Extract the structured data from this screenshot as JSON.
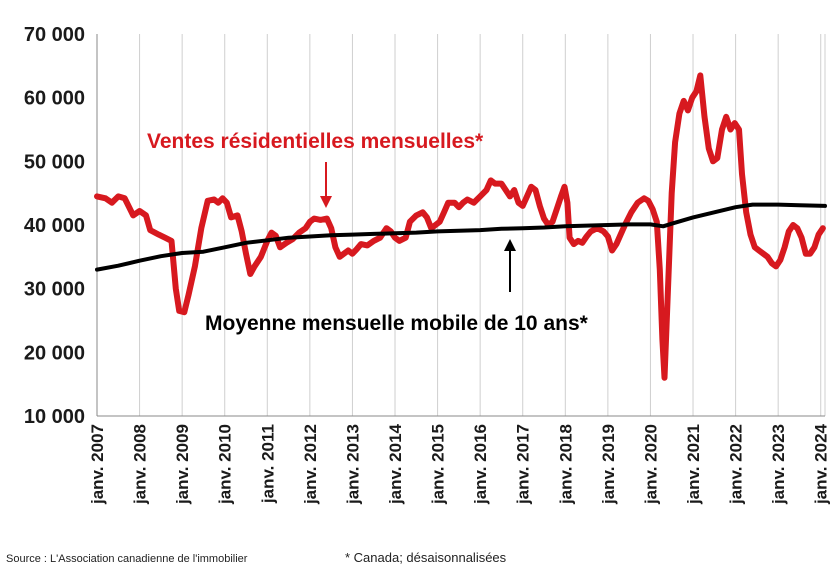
{
  "chart_data": {
    "type": "line",
    "ylim": [
      10000,
      70000
    ],
    "y_ticks": [
      "10 000",
      "20 000",
      "30 000",
      "40 000",
      "50 000",
      "60 000",
      "70 000"
    ],
    "y_tick_values": [
      10000,
      20000,
      30000,
      40000,
      50000,
      60000,
      70000
    ],
    "x_ticks": [
      "janv. 2007",
      "janv. 2008",
      "janv. 2009",
      "janv. 2010",
      "janv. 2011",
      "janv. 2012",
      "janv. 2013",
      "janv. 2014",
      "janv. 2015",
      "janv. 2016",
      "janv. 2017",
      "janv. 2018",
      "janv. 2019",
      "janv. 2020",
      "janv. 2021",
      "janv. 2022",
      "janv. 2023",
      "janv. 2024"
    ],
    "x_tick_values": [
      2007,
      2008,
      2009,
      2010,
      2011,
      2012,
      2013,
      2014,
      2015,
      2016,
      2017,
      2018,
      2019,
      2020,
      2021,
      2022,
      2023,
      2024
    ],
    "xlim": [
      2007,
      2024.1
    ],
    "grid": "vertical",
    "series": [
      {
        "name": "Ventes résidentielles mensuelles*",
        "color": "#d7191f",
        "points": [
          [
            2007.0,
            44500
          ],
          [
            2007.2,
            44200
          ],
          [
            2007.35,
            43500
          ],
          [
            2007.5,
            44500
          ],
          [
            2007.65,
            44200
          ],
          [
            2007.85,
            41500
          ],
          [
            2008.0,
            42200
          ],
          [
            2008.15,
            41500
          ],
          [
            2008.25,
            39200
          ],
          [
            2008.45,
            38500
          ],
          [
            2008.6,
            38000
          ],
          [
            2008.75,
            37500
          ],
          [
            2008.85,
            30000
          ],
          [
            2008.93,
            26500
          ],
          [
            2009.05,
            26300
          ],
          [
            2009.15,
            29000
          ],
          [
            2009.3,
            33500
          ],
          [
            2009.45,
            39500
          ],
          [
            2009.6,
            43800
          ],
          [
            2009.75,
            44000
          ],
          [
            2009.85,
            43500
          ],
          [
            2009.95,
            44200
          ],
          [
            2010.05,
            43500
          ],
          [
            2010.15,
            41200
          ],
          [
            2010.3,
            41500
          ],
          [
            2010.4,
            39000
          ],
          [
            2010.5,
            35500
          ],
          [
            2010.6,
            32300
          ],
          [
            2010.7,
            33500
          ],
          [
            2010.85,
            35000
          ],
          [
            2011.0,
            37500
          ],
          [
            2011.1,
            38800
          ],
          [
            2011.2,
            38300
          ],
          [
            2011.3,
            36500
          ],
          [
            2011.45,
            37200
          ],
          [
            2011.6,
            37800
          ],
          [
            2011.75,
            38800
          ],
          [
            2011.9,
            39500
          ],
          [
            2012.0,
            40500
          ],
          [
            2012.1,
            41000
          ],
          [
            2012.25,
            40800
          ],
          [
            2012.4,
            41000
          ],
          [
            2012.5,
            39500
          ],
          [
            2012.6,
            36500
          ],
          [
            2012.7,
            35000
          ],
          [
            2012.8,
            35500
          ],
          [
            2012.9,
            36000
          ],
          [
            2013.0,
            35500
          ],
          [
            2013.1,
            36200
          ],
          [
            2013.2,
            37000
          ],
          [
            2013.35,
            36800
          ],
          [
            2013.5,
            37500
          ],
          [
            2013.65,
            38000
          ],
          [
            2013.8,
            39500
          ],
          [
            2013.9,
            39000
          ],
          [
            2014.0,
            38000
          ],
          [
            2014.1,
            37500
          ],
          [
            2014.25,
            38000
          ],
          [
            2014.35,
            40500
          ],
          [
            2014.5,
            41500
          ],
          [
            2014.65,
            42000
          ],
          [
            2014.75,
            41200
          ],
          [
            2014.85,
            39500
          ],
          [
            2014.95,
            40000
          ],
          [
            2015.05,
            40500
          ],
          [
            2015.15,
            42000
          ],
          [
            2015.25,
            43500
          ],
          [
            2015.4,
            43500
          ],
          [
            2015.5,
            42800
          ],
          [
            2015.6,
            43500
          ],
          [
            2015.7,
            44000
          ],
          [
            2015.85,
            43500
          ],
          [
            2016.0,
            44500
          ],
          [
            2016.15,
            45500
          ],
          [
            2016.25,
            47000
          ],
          [
            2016.35,
            46500
          ],
          [
            2016.5,
            46500
          ],
          [
            2016.6,
            45500
          ],
          [
            2016.7,
            44500
          ],
          [
            2016.8,
            45500
          ],
          [
            2016.9,
            43500
          ],
          [
            2017.0,
            43000
          ],
          [
            2017.1,
            44500
          ],
          [
            2017.2,
            46000
          ],
          [
            2017.3,
            45500
          ],
          [
            2017.4,
            43000
          ],
          [
            2017.5,
            41000
          ],
          [
            2017.6,
            40000
          ],
          [
            2017.7,
            40500
          ],
          [
            2017.8,
            42500
          ],
          [
            2017.9,
            44500
          ],
          [
            2017.98,
            46000
          ],
          [
            2018.05,
            43500
          ],
          [
            2018.1,
            38000
          ],
          [
            2018.2,
            37000
          ],
          [
            2018.3,
            37500
          ],
          [
            2018.4,
            37200
          ],
          [
            2018.5,
            38200
          ],
          [
            2018.6,
            39000
          ],
          [
            2018.75,
            39500
          ],
          [
            2018.9,
            39000
          ],
          [
            2019.0,
            38200
          ],
          [
            2019.1,
            36000
          ],
          [
            2019.2,
            37000
          ],
          [
            2019.3,
            38500
          ],
          [
            2019.4,
            40000
          ],
          [
            2019.55,
            42000
          ],
          [
            2019.7,
            43500
          ],
          [
            2019.85,
            44200
          ],
          [
            2019.95,
            43800
          ],
          [
            2020.05,
            42500
          ],
          [
            2020.15,
            40500
          ],
          [
            2020.22,
            33000
          ],
          [
            2020.28,
            22000
          ],
          [
            2020.33,
            16000
          ],
          [
            2020.4,
            28000
          ],
          [
            2020.5,
            45000
          ],
          [
            2020.58,
            53000
          ],
          [
            2020.68,
            57500
          ],
          [
            2020.78,
            59500
          ],
          [
            2020.88,
            58000
          ],
          [
            2020.98,
            60000
          ],
          [
            2021.08,
            61000
          ],
          [
            2021.17,
            63500
          ],
          [
            2021.27,
            57000
          ],
          [
            2021.37,
            52000
          ],
          [
            2021.47,
            50000
          ],
          [
            2021.57,
            50500
          ],
          [
            2021.68,
            55000
          ],
          [
            2021.78,
            57000
          ],
          [
            2021.88,
            55000
          ],
          [
            2021.98,
            56000
          ],
          [
            2022.08,
            55000
          ],
          [
            2022.15,
            48000
          ],
          [
            2022.25,
            42000
          ],
          [
            2022.35,
            38500
          ],
          [
            2022.45,
            36500
          ],
          [
            2022.55,
            36000
          ],
          [
            2022.65,
            35500
          ],
          [
            2022.75,
            35000
          ],
          [
            2022.85,
            34000
          ],
          [
            2022.95,
            33500
          ],
          [
            2023.05,
            34500
          ],
          [
            2023.15,
            36500
          ],
          [
            2023.25,
            39000
          ],
          [
            2023.35,
            40000
          ],
          [
            2023.45,
            39500
          ],
          [
            2023.55,
            38000
          ],
          [
            2023.65,
            35500
          ],
          [
            2023.75,
            35500
          ],
          [
            2023.85,
            36500
          ],
          [
            2023.95,
            38500
          ],
          [
            2024.05,
            39500
          ]
        ]
      },
      {
        "name": "Moyenne mensuelle mobile de 10 ans*",
        "color": "#000000",
        "points": [
          [
            2007.0,
            33000
          ],
          [
            2007.5,
            33600
          ],
          [
            2008.0,
            34400
          ],
          [
            2008.5,
            35100
          ],
          [
            2009.0,
            35600
          ],
          [
            2009.5,
            35800
          ],
          [
            2010.0,
            36500
          ],
          [
            2010.5,
            37200
          ],
          [
            2011.0,
            37600
          ],
          [
            2011.5,
            38000
          ],
          [
            2012.0,
            38200
          ],
          [
            2012.5,
            38400
          ],
          [
            2013.0,
            38500
          ],
          [
            2013.5,
            38600
          ],
          [
            2014.0,
            38700
          ],
          [
            2014.5,
            38800
          ],
          [
            2015.0,
            39000
          ],
          [
            2015.5,
            39100
          ],
          [
            2016.0,
            39200
          ],
          [
            2016.5,
            39400
          ],
          [
            2017.0,
            39500
          ],
          [
            2017.5,
            39600
          ],
          [
            2018.0,
            39800
          ],
          [
            2018.5,
            39900
          ],
          [
            2019.0,
            40000
          ],
          [
            2019.5,
            40100
          ],
          [
            2020.0,
            40100
          ],
          [
            2020.3,
            39800
          ],
          [
            2020.5,
            40200
          ],
          [
            2021.0,
            41200
          ],
          [
            2021.5,
            42000
          ],
          [
            2022.0,
            42800
          ],
          [
            2022.4,
            43200
          ],
          [
            2023.0,
            43200
          ],
          [
            2023.5,
            43100
          ],
          [
            2024.1,
            43000
          ]
        ]
      }
    ]
  },
  "annotations": {
    "red_label": "Ventes résidentielles mensuelles*",
    "black_label": "Moyenne mensuelle mobile de 10 ans*"
  },
  "source": "Source : L'Association canadienne de l'immobilier",
  "footnote": "* Canada; désaisonnalisées"
}
